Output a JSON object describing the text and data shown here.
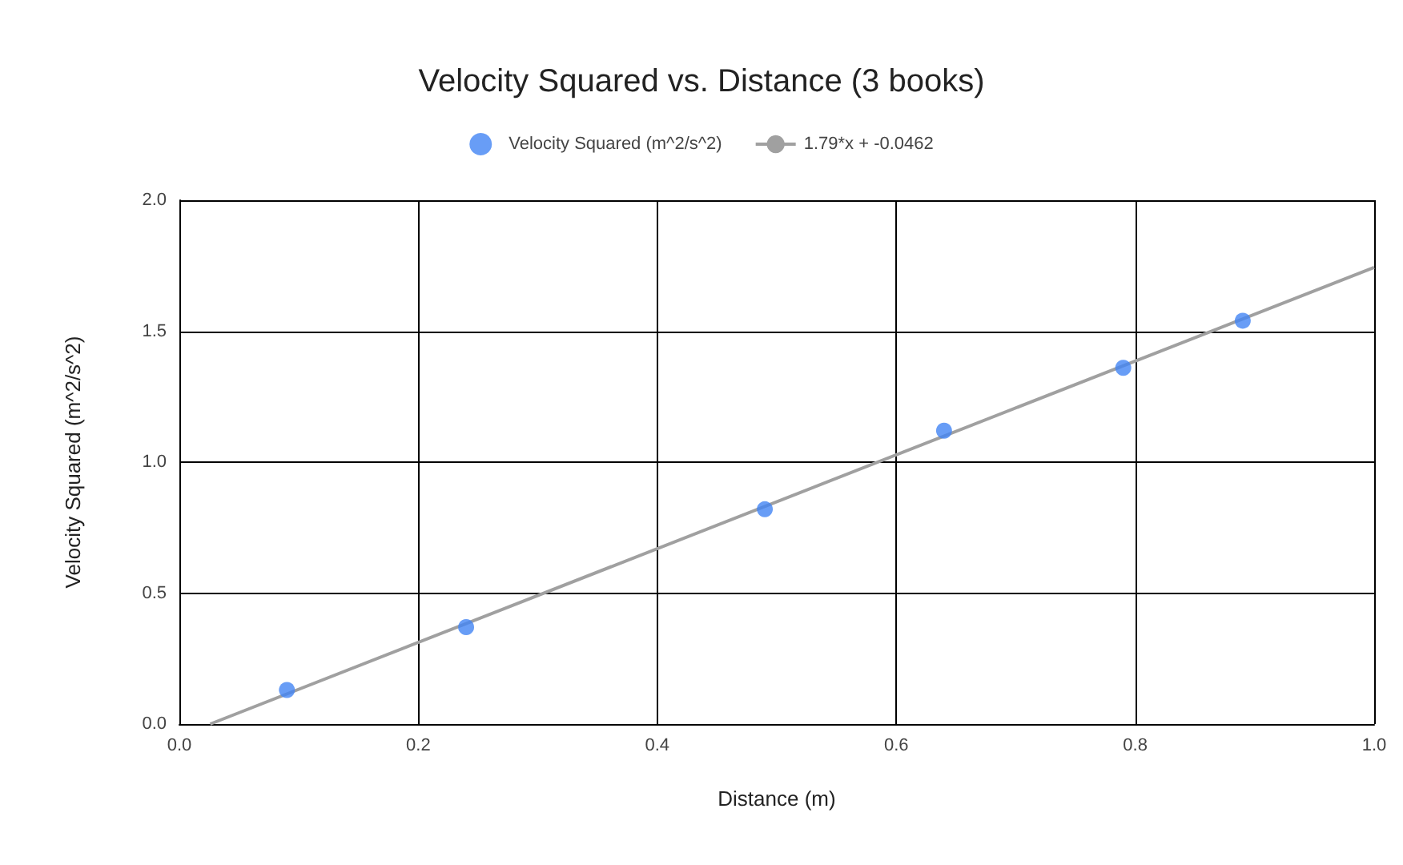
{
  "chart_data": {
    "type": "scatter",
    "title": "Velocity Squared vs. Distance (3 books)",
    "xlabel": "Distance (m)",
    "ylabel": "Velocity Squared (m^2/s^2)",
    "x": [
      0.09,
      0.24,
      0.49,
      0.64,
      0.79,
      0.89
    ],
    "series": [
      {
        "name": "Velocity Squared (m^2/s^2)",
        "color": "#4285f4",
        "values": [
          0.13,
          0.37,
          0.82,
          1.12,
          1.36,
          1.54
        ],
        "marker": "circle"
      },
      {
        "name": "1.79*x + -0.0462",
        "type": "line",
        "color": "#a0a0a0",
        "x": [
          0.0258,
          1.0
        ],
        "values": [
          0,
          1.7438
        ],
        "marker": "none",
        "line_style": "solid"
      }
    ],
    "xlim": [
      0,
      1
    ],
    "ylim": [
      0,
      2
    ],
    "xticks": [
      {
        "value": 0,
        "label": "0.0"
      },
      {
        "value": 0.2,
        "label": "0.2"
      },
      {
        "value": 0.4,
        "label": "0.4"
      },
      {
        "value": 0.6,
        "label": "0.6"
      },
      {
        "value": 0.8,
        "label": "0.8"
      },
      {
        "value": 1,
        "label": "1.0"
      }
    ],
    "yticks": [
      {
        "value": 0,
        "label": "0.0"
      },
      {
        "value": 0.5,
        "label": "0.5"
      },
      {
        "value": 1,
        "label": "1.0"
      },
      {
        "value": 1.5,
        "label": "1.5"
      },
      {
        "value": 2,
        "label": "2.0"
      }
    ],
    "grid": true,
    "legend": "top"
  }
}
